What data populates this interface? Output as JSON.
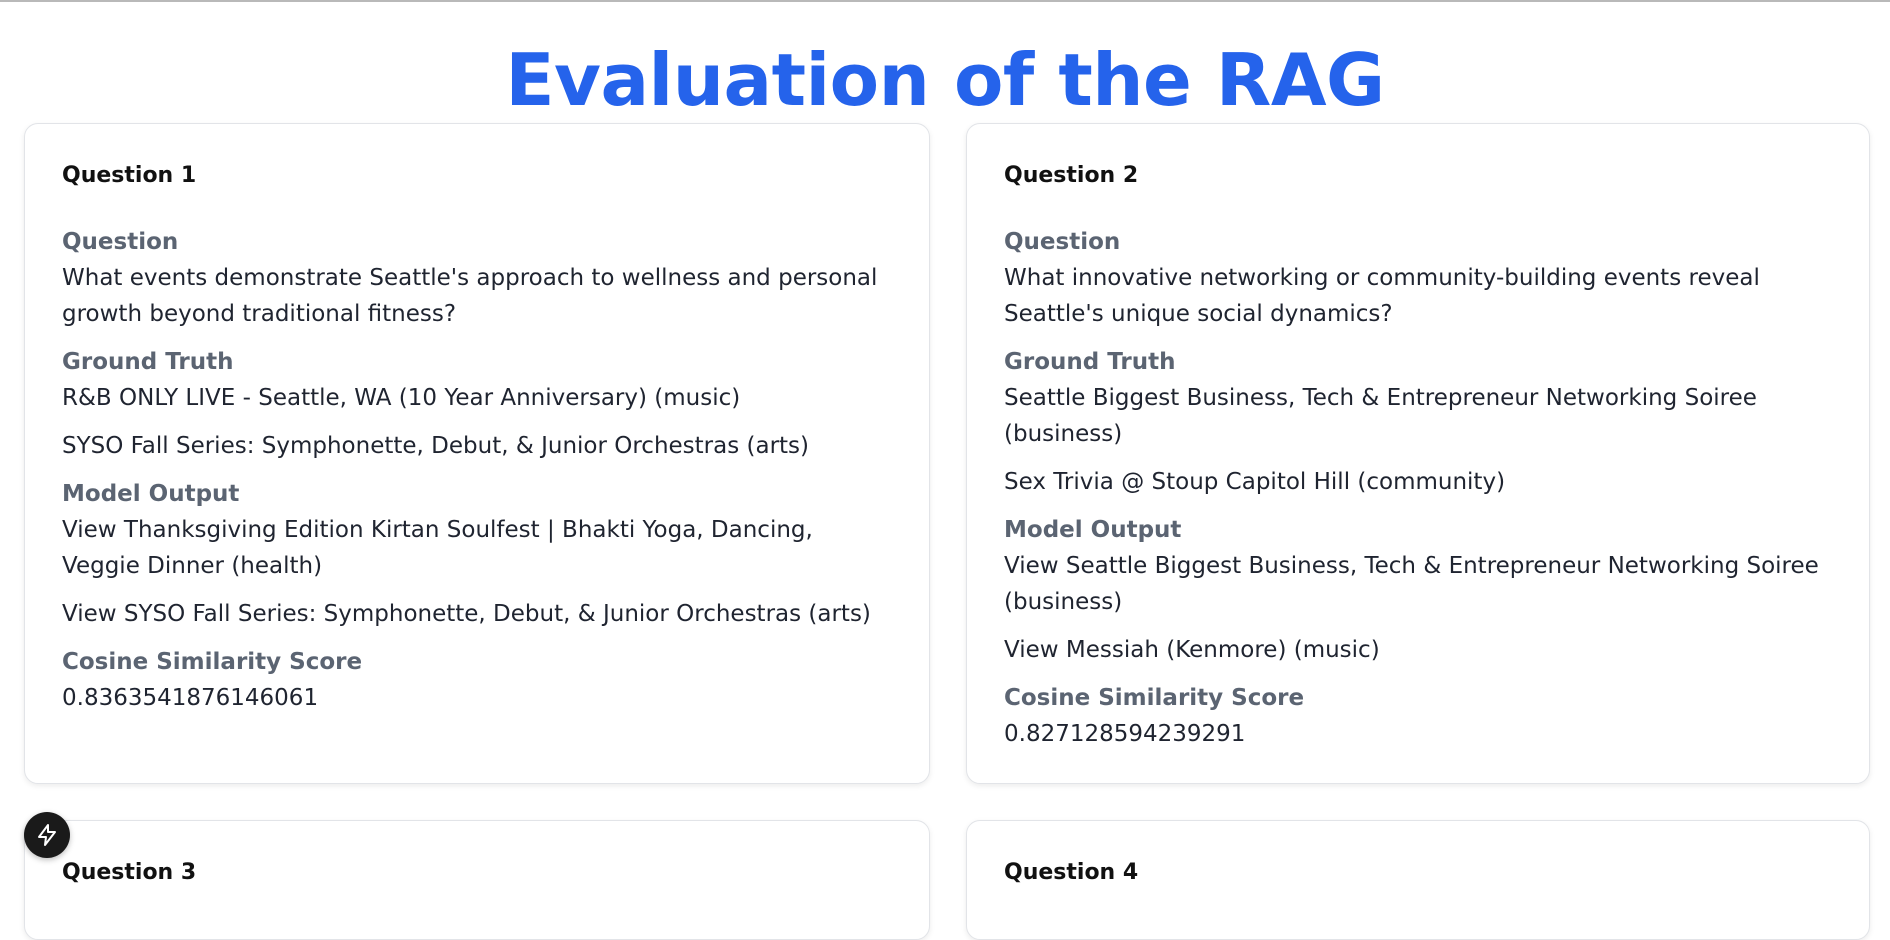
{
  "page": {
    "title": "Evaluation of the RAG"
  },
  "labels": {
    "question": "Question",
    "ground_truth": "Ground Truth",
    "model_output": "Model Output",
    "score": "Cosine Similarity Score"
  },
  "cards": [
    {
      "heading": "Question 1",
      "question": "What events demonstrate Seattle's approach to wellness and personal growth beyond traditional fitness?",
      "ground_truth": [
        "R&B ONLY LIVE - Seattle, WA (10 Year Anniversary) (music)",
        "SYSO Fall Series: Symphonette, Debut, & Junior Orchestras (arts)"
      ],
      "model_output": [
        "View Thanksgiving Edition Kirtan Soulfest | Bhakti Yoga, Dancing, Veggie Dinner (health)",
        "View SYSO Fall Series: Symphonette, Debut, & Junior Orchestras (arts)"
      ],
      "score": "0.8363541876146061"
    },
    {
      "heading": "Question 2",
      "question": "What innovative networking or community-building events reveal Seattle's unique social dynamics?",
      "ground_truth": [
        "Seattle Biggest Business, Tech & Entrepreneur Networking Soiree (business)",
        "Sex Trivia @ Stoup Capitol Hill (community)"
      ],
      "model_output": [
        "View Seattle Biggest Business, Tech & Entrepreneur Networking Soiree (business)",
        "View Messiah (Kenmore) (music)"
      ],
      "score": "0.827128594239291"
    },
    {
      "heading": "Question 3"
    },
    {
      "heading": "Question 4"
    }
  ],
  "icons": {
    "floating_button": "lightning-bolt-icon"
  },
  "colors": {
    "title": "#2563eb",
    "label": "#5b6472",
    "text": "#1f2430"
  }
}
